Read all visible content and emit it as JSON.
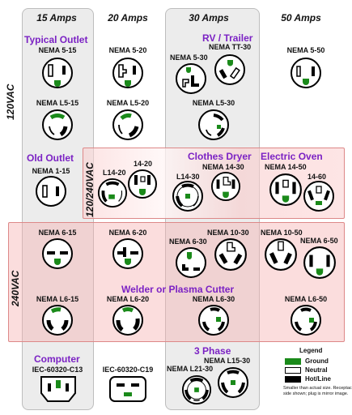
{
  "columns": {
    "c15": "15 Amps",
    "c20": "20 Amps",
    "c30": "30 Amps",
    "c50": "50 Amps"
  },
  "voltages": {
    "v120": "120VAC",
    "v120240": "120/240VAC",
    "v240": "240VAC"
  },
  "categories": {
    "typical": "Typical Outlet",
    "rv": "RV / Trailer",
    "old": "Old Outlet",
    "dryer": "Clothes Dryer",
    "oven": "Electric Oven",
    "welder": "Welder or Plasma Cutter",
    "computer": "Computer",
    "phase3": "3 Phase"
  },
  "outlets": {
    "n515": "NEMA 5-15",
    "n520": "NEMA 5-20",
    "n530": "NEMA 5-30",
    "ntt30": "NEMA TT-30",
    "n550": "NEMA 5-50",
    "nl515": "NEMA L5-15",
    "nl520": "NEMA L5-20",
    "nl530": "NEMA L5-30",
    "n115": "NEMA 1-15",
    "l1420": "L14-20",
    "n1420": "14-20",
    "l1430": "L14-30",
    "n1430": "NEMA 14-30",
    "n1450": "NEMA 14-50",
    "n1460": "14-60",
    "n615": "NEMA 6-15",
    "n620": "NEMA 6-20",
    "n630": "NEMA 6-30",
    "n1030": "NEMA 10-30",
    "n1050": "NEMA 10-50",
    "n650": "NEMA 6-50",
    "nl615": "NEMA L6-15",
    "nl620": "NEMA L6-20",
    "nl630": "NEMA L6-30",
    "nl650": "NEMA L6-50",
    "c13": "IEC-60320-C13",
    "c19": "IEC-60320-C19",
    "nl2130": "NEMA L21-30",
    "nl1530": "NEMA L15-30"
  },
  "legend": {
    "title": "Legend",
    "ground": "Ground",
    "neutral": "Neutral",
    "hot": "Hot/Line",
    "note": "Smaller than actual size. Receptacle side shown; plug is mirror image.",
    "colors": {
      "ground": "#1a8a1a",
      "neutral": "#ffffff",
      "hot": "#000000"
    }
  },
  "colors": {
    "category": "#7b22c4",
    "ground": "#1a8a1a",
    "band240": "#f5afaf"
  }
}
